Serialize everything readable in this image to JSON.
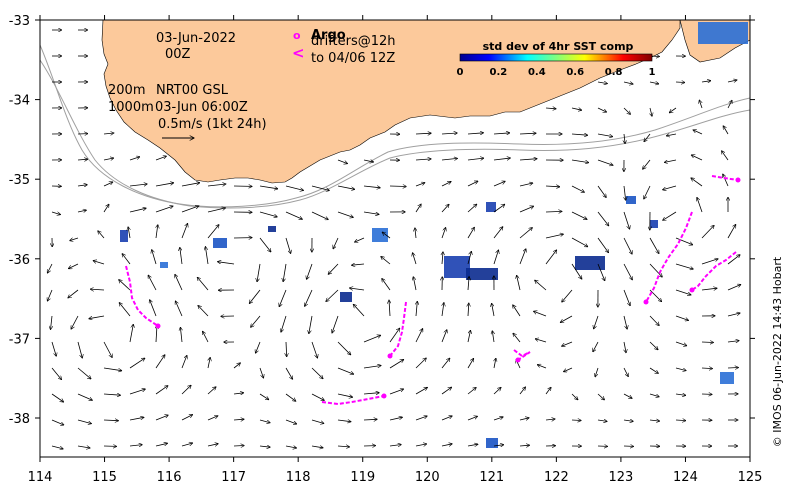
{
  "map": {
    "date": "03-Jun-2022",
    "hour": "00Z",
    "depth_200": "200m",
    "depth_1000": "1000m",
    "product": "NRT00 GSL",
    "product_time": "03-Jun 06:00Z",
    "velocity_scale": "0.5m/s (1kt 24h)",
    "argo_label": "Argo",
    "drifters_label": "drifters@12h",
    "drifters_to": "to 04/06 12Z",
    "argo_symbol": "o",
    "drifter_symbol": "<",
    "colorbar_title": "std dev of 4hr SST comp",
    "colorbar_ticks": [
      "0",
      "0.2",
      "0.4",
      "0.6",
      "0.8",
      "1"
    ],
    "credit": "© IMOS 06-Jun-2022 14:43 Hobart",
    "x_ticks": [
      "114",
      "115",
      "116",
      "117",
      "118",
      "119",
      "120",
      "121",
      "122",
      "123",
      "124",
      "125"
    ],
    "y_ticks": [
      "-33",
      "-34",
      "-35",
      "-36",
      "-37",
      "-38"
    ],
    "colors": {
      "land": "#fcc99b",
      "drifter": "#ff00ff",
      "sst_patch": "#1a3fb0",
      "isobath": "#a0a0a0"
    }
  }
}
